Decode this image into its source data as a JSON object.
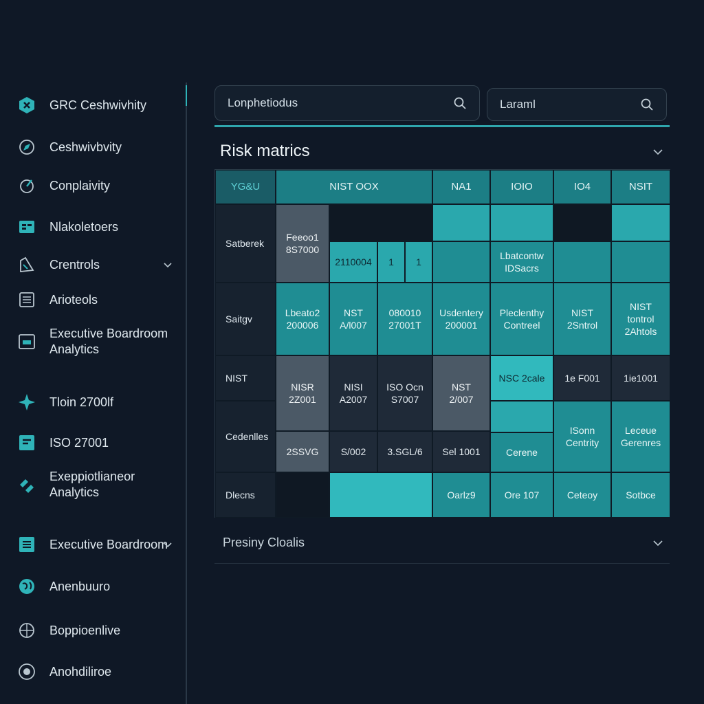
{
  "colors": {
    "background": "#0f1826",
    "accent": "#2fb3b8",
    "teal_cell": "#2aa8ad",
    "grey_cell": "#4b5966",
    "dark_cell": "#1f2a38"
  },
  "sidebar": {
    "items": [
      {
        "label": "GRC Ceshwivhity",
        "icon": "shield-x-icon"
      },
      {
        "label": "Ceshwivbvity",
        "icon": "compass-icon"
      },
      {
        "label": "Conplaivity",
        "icon": "gauge-icon"
      },
      {
        "label": "Nlakoletoers",
        "icon": "grid-icon"
      },
      {
        "label": "Crentrols",
        "icon": "controls-icon"
      },
      {
        "label": "Arioteols",
        "icon": "document-list-icon"
      },
      {
        "label": "Executive Boardroom\nAnalytics",
        "icon": "board-icon"
      },
      {
        "label": "Tloin 2700lf",
        "icon": "star-icon"
      },
      {
        "label": "ISO 27001",
        "icon": "iso-icon"
      },
      {
        "label": "Exeppiotlianeor\nAnalytics",
        "icon": "link-icon"
      },
      {
        "label": "Executive Boardroom",
        "icon": "report-icon"
      },
      {
        "label": "Anenbuuro",
        "icon": "globe-icon"
      },
      {
        "label": "Boppioenlive",
        "icon": "target-icon"
      },
      {
        "label": "Anohdiliroe",
        "icon": "record-icon"
      }
    ]
  },
  "search": {
    "primary_value": "Lonphetiodus",
    "secondary_value": "Laraml"
  },
  "risk_section": {
    "title": "Risk matrics"
  },
  "matrix": {
    "corner": "YG&U",
    "columns": [
      "NIST OOX",
      "NA1",
      "IOIO",
      "IO4",
      "NSIT"
    ],
    "rows": [
      "Satberek",
      "Saitgv",
      "NIST",
      "Cedenlles",
      "Dlecns"
    ],
    "cells": {
      "r1a": "Feeoo1\n8S7000",
      "r1b": "2110004",
      "r1c": "1",
      "r1d": "1",
      "r1e": "Lbatcontw\nIDSacrs",
      "r2a": "Lbeato2\n200006",
      "r2b": "NST\nA/l007",
      "r2c": "080010\n27001T",
      "r2d": "Usdentery\n200001",
      "r2e": "Pleclenthy\nContreel",
      "r2f": "NIST\n2Sntrol",
      "r2g": "NIST\ntontrol\n2Ahtols",
      "r3a": "NISR\n2Z001",
      "r3b": "NISI\nA2007",
      "r3c": "ISO Ocn\nS7007",
      "r3d": "NST\n2/007",
      "r3e": "NSC 2cale",
      "r3f": "1e F001",
      "r3g": "1ie1001",
      "r4a": "2SSVG",
      "r4b": "S/002",
      "r4c": "3.SGL/6",
      "r4d": "Sel 1001",
      "r4e": "Cerene",
      "r4f": "ISonn\nCentrity",
      "r4g": "Leceue\nGerenres",
      "r5a": "Oarlz9",
      "r5b": "Ore 107",
      "r5c": "Ceteoy",
      "r5d": "Sotbce"
    }
  },
  "pricing_section": {
    "label": "Presiny Cloalis"
  }
}
